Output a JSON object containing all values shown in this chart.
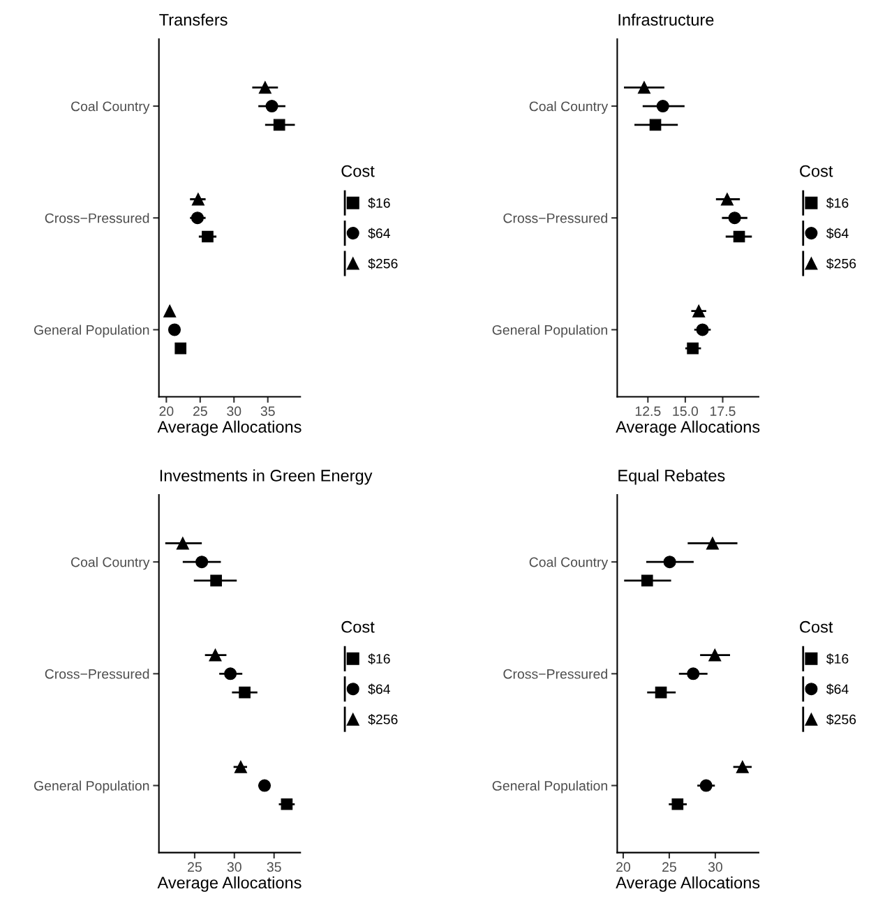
{
  "chart_data": [
    {
      "type": "scatter",
      "orientation": "horizontal",
      "title": "Transfers",
      "xlabel": "Average Allocations",
      "legend_title": "Cost",
      "legend": "right",
      "categories": [
        "Coal Country",
        "Cross−Pressured",
        "General Population"
      ],
      "xlim": [
        18.9,
        39.8
      ],
      "xticks": [
        20,
        25,
        30,
        35
      ],
      "series": [
        {
          "name": "$16",
          "color": "#000000",
          "marker": "square",
          "values": [
            36.7,
            26.1,
            22.1
          ],
          "errors": [
            [
              34.6,
              39.0
            ],
            [
              24.8,
              27.4
            ],
            null
          ]
        },
        {
          "name": "$64",
          "color": "#000000",
          "marker": "circle",
          "values": [
            35.6,
            24.6,
            21.2
          ],
          "errors": [
            [
              33.6,
              37.6
            ],
            [
              23.5,
              25.8
            ],
            null
          ]
        },
        {
          "name": "$256",
          "color": "#000000",
          "marker": "triangle",
          "values": [
            34.6,
            24.7,
            20.5
          ],
          "errors": [
            [
              32.7,
              36.5
            ],
            [
              23.5,
              25.8
            ],
            null
          ]
        }
      ]
    },
    {
      "type": "scatter",
      "orientation": "horizontal",
      "title": "Infrastructure",
      "xlabel": "Average Allocations",
      "legend_title": "Cost",
      "legend": "right",
      "categories": [
        "Coal Country",
        "Cross−Pressured",
        "General Population"
      ],
      "xlim": [
        10.45,
        19.9
      ],
      "xticks": [
        {
          "value": 12.5,
          "label": "12.5"
        },
        {
          "value": 15,
          "label": "15.0"
        },
        {
          "value": 17.5,
          "label": "17.5"
        }
      ],
      "series": [
        {
          "name": "$16",
          "color": "#000000",
          "marker": "square",
          "values": [
            13.0,
            18.6,
            15.5
          ],
          "errors": [
            [
              11.6,
              14.5
            ],
            [
              17.7,
              19.45
            ],
            [
              15.0,
              16.05
            ]
          ]
        },
        {
          "name": "$64",
          "color": "#000000",
          "marker": "circle",
          "values": [
            13.5,
            18.3,
            16.15
          ],
          "errors": [
            [
              12.15,
              14.95
            ],
            [
              17.45,
              19.15
            ],
            [
              15.6,
              16.7
            ]
          ]
        },
        {
          "name": "$256",
          "color": "#000000",
          "marker": "triangle",
          "values": [
            12.25,
            17.8,
            15.9
          ],
          "errors": [
            [
              10.9,
              13.6
            ],
            [
              17.05,
              18.65
            ],
            [
              15.4,
              16.4
            ]
          ]
        }
      ]
    },
    {
      "type": "scatter",
      "orientation": "horizontal",
      "title": "Investments in Green Energy",
      "xlabel": "Average Allocations",
      "legend_title": "Cost",
      "legend": "right",
      "categories": [
        "Coal Country",
        "Cross−Pressured",
        "General Population"
      ],
      "xlim": [
        20.5,
        38.3
      ],
      "xticks": [
        25,
        30,
        35
      ],
      "series": [
        {
          "name": "$16",
          "color": "#000000",
          "marker": "square",
          "values": [
            27.7,
            31.3,
            36.6
          ],
          "errors": [
            [
              24.9,
              30.3
            ],
            [
              29.7,
              32.9
            ],
            [
              35.6,
              37.6
            ]
          ]
        },
        {
          "name": "$64",
          "color": "#000000",
          "marker": "circle",
          "values": [
            25.9,
            29.5,
            33.8
          ],
          "errors": [
            [
              23.5,
              28.3
            ],
            [
              28.1,
              31.0
            ],
            [
              33.0,
              34.5
            ]
          ]
        },
        {
          "name": "$256",
          "color": "#000000",
          "marker": "triangle",
          "values": [
            23.5,
            27.6,
            30.8
          ],
          "errors": [
            [
              21.3,
              25.9
            ],
            [
              26.3,
              29.0
            ],
            [
              29.9,
              31.6
            ]
          ]
        }
      ]
    },
    {
      "type": "scatter",
      "orientation": "horizontal",
      "title": "Equal Rebates",
      "xlabel": "Average Allocations",
      "legend_title": "Cost",
      "legend": "right",
      "categories": [
        "Coal Country",
        "Cross−Pressured",
        "General Population"
      ],
      "xlim": [
        19.35,
        34.7
      ],
      "xticks": [
        20,
        25,
        30
      ],
      "series": [
        {
          "name": "$16",
          "color": "#000000",
          "marker": "square",
          "values": [
            22.6,
            24.1,
            25.9
          ],
          "errors": [
            [
              20.1,
              25.2
            ],
            [
              22.6,
              25.7
            ],
            [
              24.95,
              26.9
            ]
          ]
        },
        {
          "name": "$64",
          "color": "#000000",
          "marker": "circle",
          "values": [
            25.05,
            27.6,
            29.0
          ],
          "errors": [
            [
              22.5,
              27.65
            ],
            [
              26.05,
              29.15
            ],
            [
              28.05,
              29.95
            ]
          ]
        },
        {
          "name": "$256",
          "color": "#000000",
          "marker": "triangle",
          "values": [
            29.7,
            29.95,
            32.95
          ],
          "errors": [
            [
              27.0,
              32.4
            ],
            [
              28.35,
              31.6
            ],
            [
              31.95,
              33.95
            ]
          ]
        }
      ]
    }
  ]
}
